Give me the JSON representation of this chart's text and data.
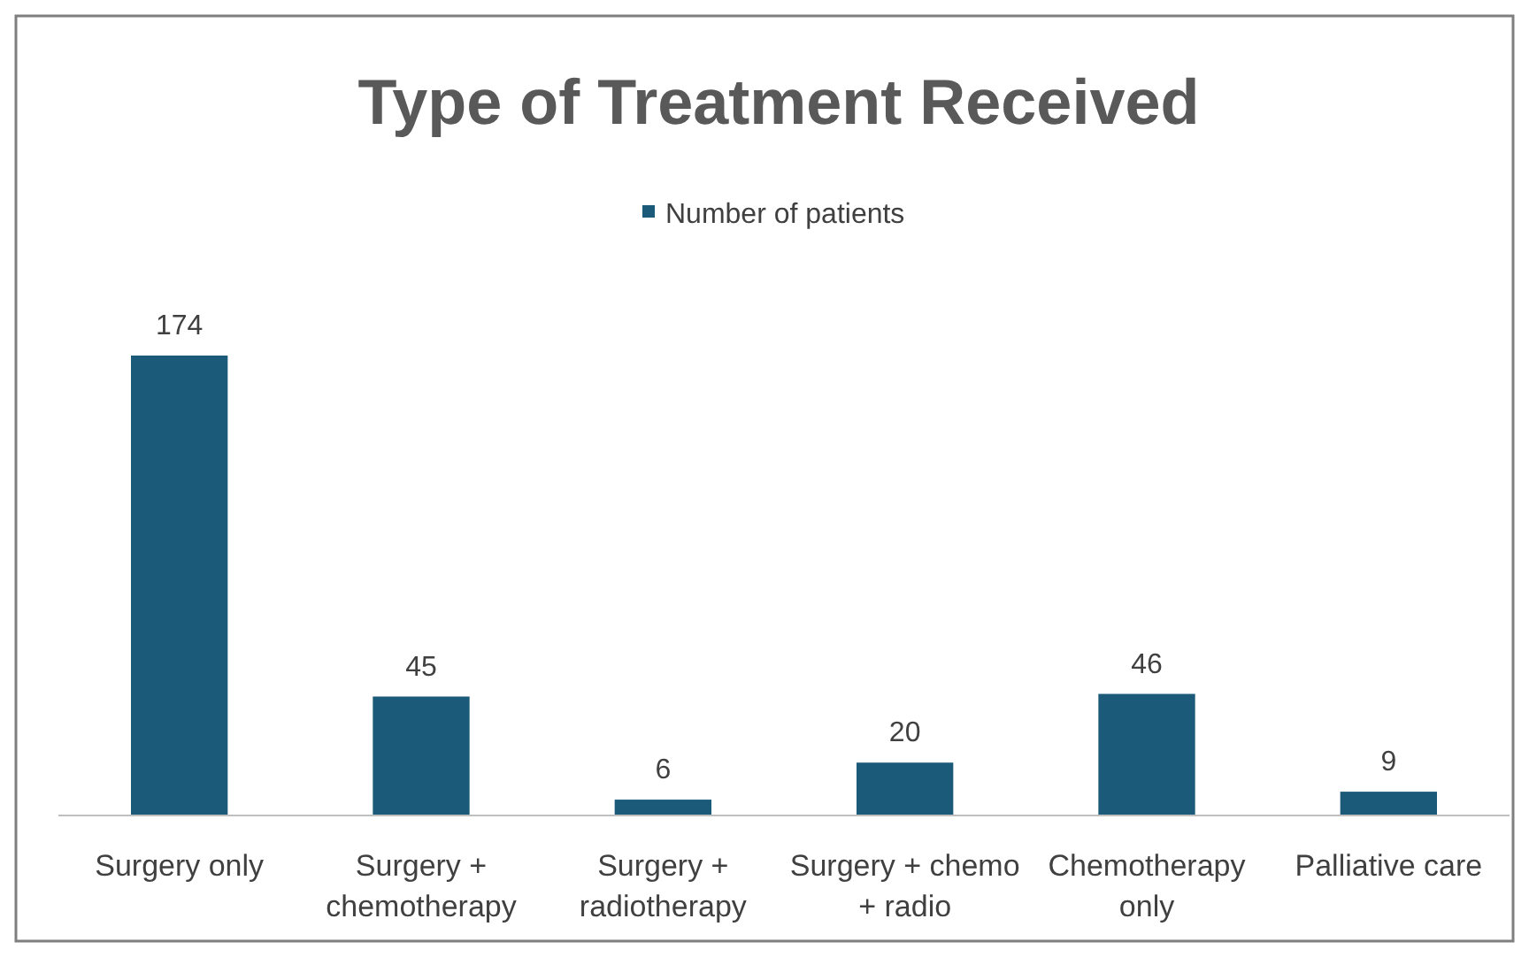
{
  "chart_data": {
    "type": "bar",
    "title": "Type of Treatment Received",
    "categories": [
      "Surgery only",
      "Surgery + chemotherapy",
      "Surgery + radiotherapy",
      "Surgery + chemo + radio",
      "Chemotherapy only",
      "Palliative care"
    ],
    "series": [
      {
        "name": "Number of patients",
        "color": "#1b5a78",
        "values": [
          174,
          45,
          6,
          20,
          46,
          9
        ]
      }
    ],
    "data_labels": true,
    "legend": "top"
  }
}
